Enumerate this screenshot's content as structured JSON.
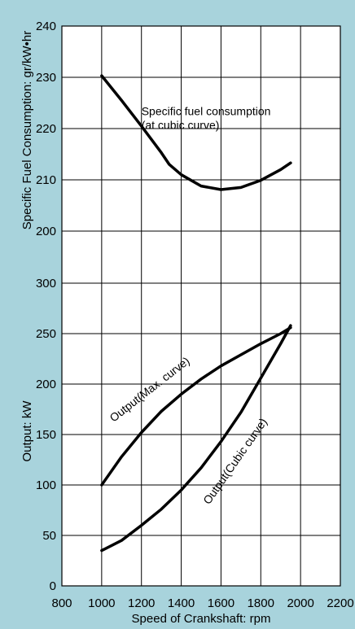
{
  "chart_data": {
    "type": "line",
    "xlabel": "Speed of Crankshaft: rpm",
    "x_ticks": [
      "800",
      "1000",
      "1200",
      "1400",
      "1600",
      "1800",
      "2000",
      "2200"
    ],
    "xlim": [
      800,
      2200
    ],
    "grid": true,
    "panels": [
      {
        "ylabel": "Specific Fuel Consumption: gr/kW•hr",
        "ylim": [
          200,
          240
        ],
        "y_ticks": [
          "200",
          "210",
          "220",
          "230",
          "240"
        ],
        "series": [
          {
            "annotation": [
              "Specific fuel consumption",
              "(at cubic curve)"
            ],
            "x": [
              1000,
              1100,
              1200,
              1300,
              1340,
              1400,
              1500,
              1600,
              1700,
              1800,
              1900,
              1950
            ],
            "y": [
              230.3,
              225.5,
              220.5,
              215.3,
              213,
              211,
              208.8,
              208.1,
              208.5,
              209.9,
              212,
              213.3
            ]
          }
        ]
      },
      {
        "ylabel": "Output: kW",
        "ylim": [
          0,
          300
        ],
        "y_ticks": [
          "0",
          "50",
          "100",
          "150",
          "200",
          "250",
          "300"
        ],
        "series": [
          {
            "annotation": "Output(Max. curve)",
            "x": [
              1000,
              1100,
              1200,
              1300,
              1400,
              1500,
              1600,
              1700,
              1800,
              1900,
              1950
            ],
            "y": [
              100,
              128,
              152,
              173,
              190,
              205,
              218,
              229,
              240,
              250,
              256
            ]
          },
          {
            "annotation": "Output(Cubic curve)",
            "x": [
              1000,
              1100,
              1200,
              1300,
              1400,
              1500,
              1600,
              1700,
              1800,
              1900,
              1950
            ],
            "y": [
              35,
              45,
              60,
              76,
              95,
              117,
              143,
              172,
              206,
              240,
              258
            ]
          }
        ]
      }
    ]
  }
}
